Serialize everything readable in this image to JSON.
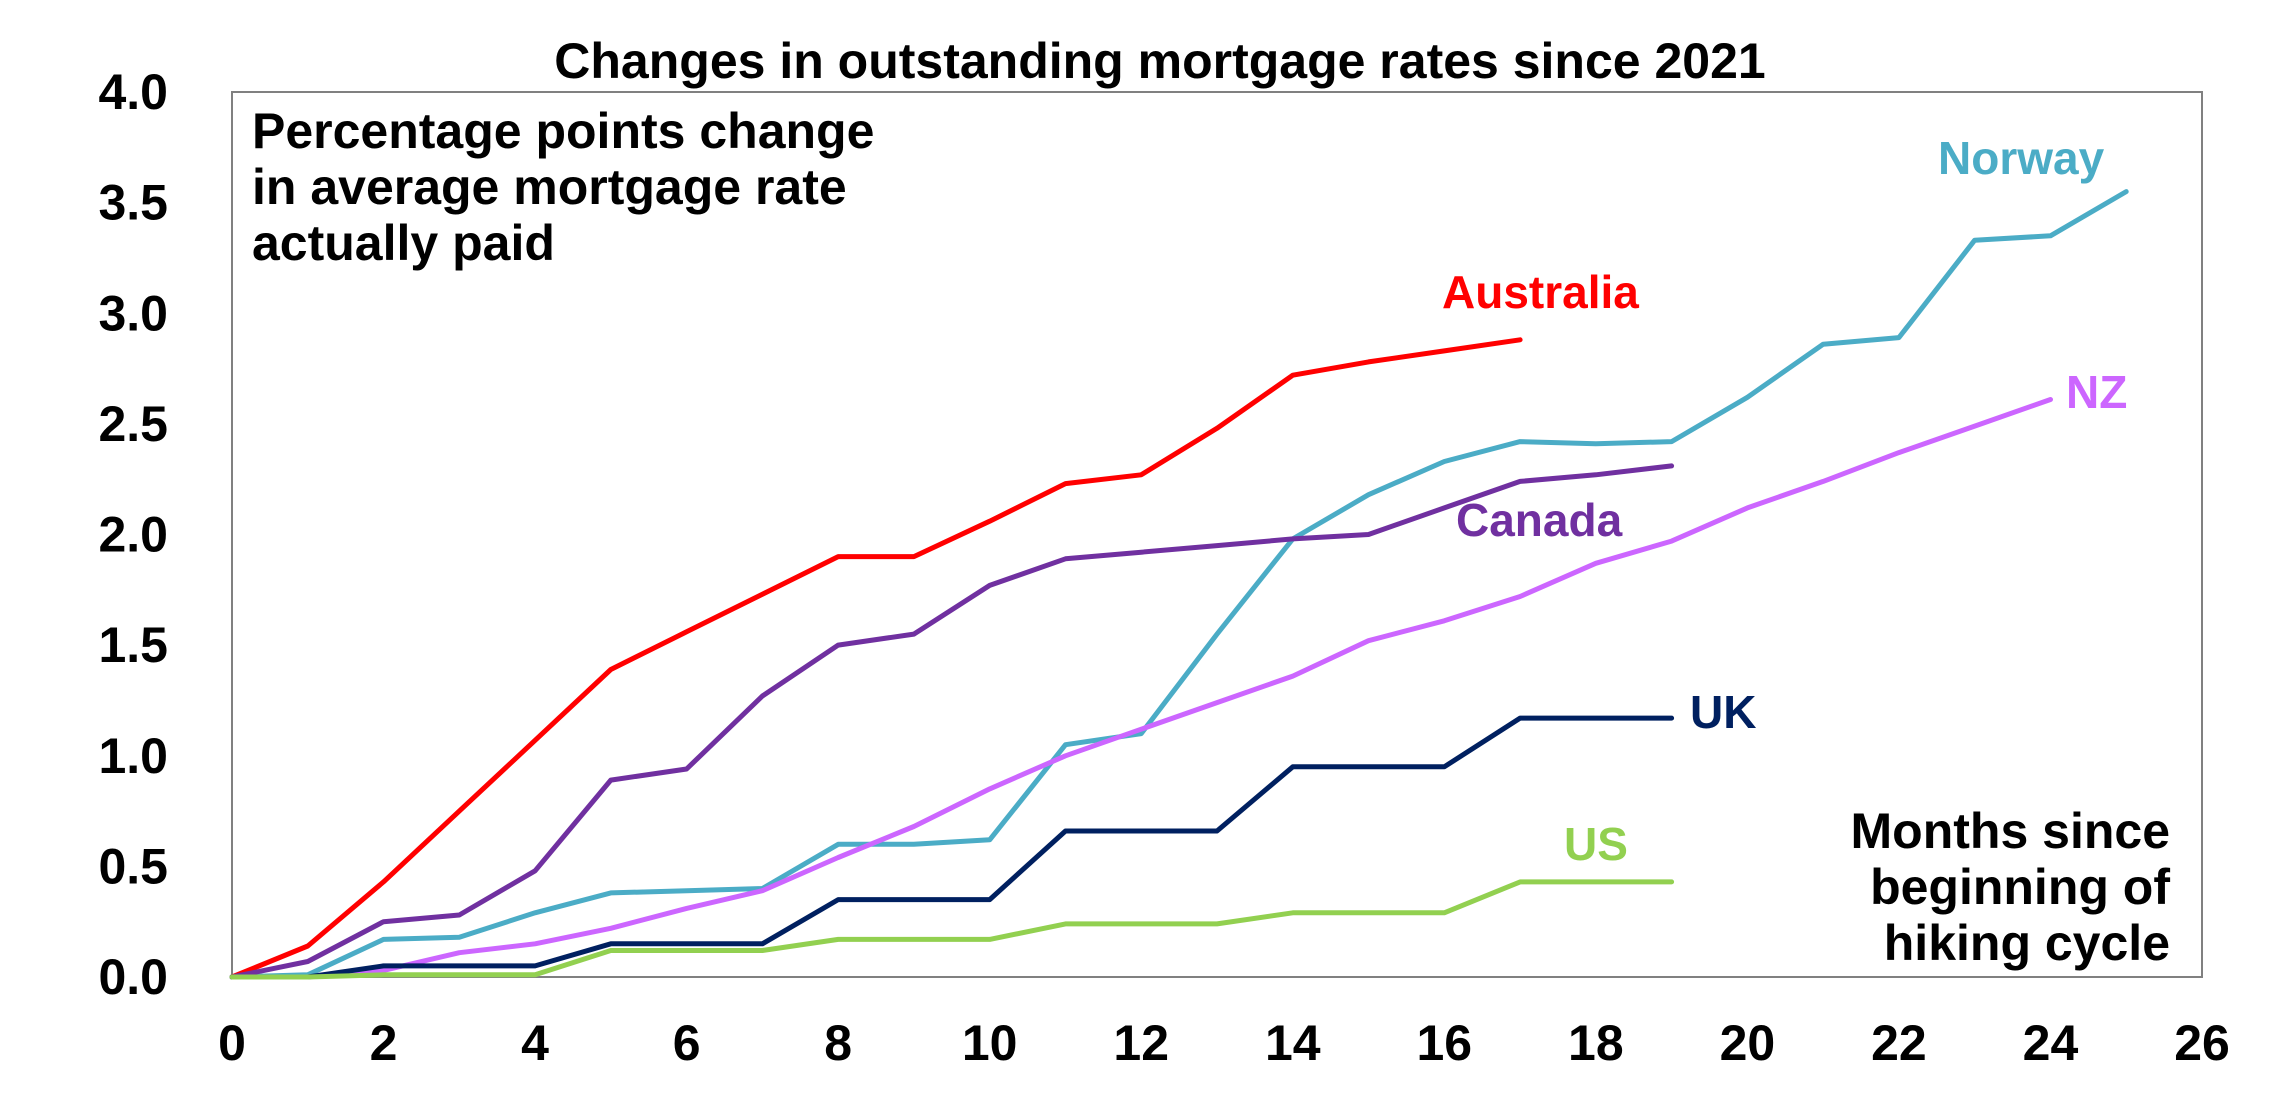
{
  "chart_data": {
    "type": "line",
    "title": "Changes in outstanding mortgage rates since 2021",
    "ylabel_note": [
      "Percentage points change",
      "in average mortgage rate",
      "actually paid"
    ],
    "xlabel_note": [
      "Months since",
      "beginning of",
      "hiking cycle"
    ],
    "xlim": [
      0,
      26
    ],
    "ylim": [
      0,
      4.0
    ],
    "x_ticks": [
      "0",
      "2",
      "4",
      "6",
      "8",
      "10",
      "12",
      "14",
      "16",
      "18",
      "20",
      "22",
      "24",
      "26"
    ],
    "y_ticks": [
      "0.0",
      "0.5",
      "1.0",
      "1.5",
      "2.0",
      "2.5",
      "3.0",
      "3.5",
      "4.0"
    ],
    "grid": false,
    "legend": "inline labels",
    "series": [
      {
        "name": "Australia",
        "color": "#ff0000",
        "x": [
          0,
          1,
          2,
          3,
          4,
          5,
          6,
          7,
          8,
          9,
          10,
          11,
          12,
          13,
          14,
          15,
          16,
          17
        ],
        "values": [
          0.0,
          0.14,
          0.43,
          0.75,
          1.07,
          1.39,
          1.56,
          1.73,
          1.9,
          1.9,
          2.06,
          2.23,
          2.27,
          2.48,
          2.72,
          2.78,
          2.83,
          2.88
        ]
      },
      {
        "name": "Norway",
        "color": "#4bacc6",
        "x": [
          0,
          1,
          2,
          3,
          4,
          5,
          6,
          7,
          8,
          9,
          10,
          11,
          12,
          13,
          14,
          15,
          16,
          17,
          18,
          19,
          20,
          21,
          22,
          23,
          24,
          25
        ],
        "values": [
          0.0,
          0.01,
          0.17,
          0.18,
          0.29,
          0.38,
          0.39,
          0.4,
          0.6,
          0.6,
          0.62,
          1.05,
          1.1,
          1.55,
          1.98,
          2.18,
          2.33,
          2.42,
          2.41,
          2.42,
          2.62,
          2.86,
          2.89,
          3.33,
          3.35,
          3.55
        ]
      },
      {
        "name": "NZ",
        "color": "#cc66ff",
        "x": [
          0,
          1,
          2,
          3,
          4,
          5,
          6,
          7,
          8,
          9,
          10,
          11,
          12,
          13,
          14,
          15,
          16,
          17,
          18,
          19,
          20,
          21,
          22,
          23,
          24
        ],
        "values": [
          0.0,
          0.0,
          0.03,
          0.11,
          0.15,
          0.22,
          0.31,
          0.39,
          0.54,
          0.68,
          0.85,
          1.0,
          1.12,
          1.24,
          1.36,
          1.52,
          1.61,
          1.72,
          1.87,
          1.97,
          2.12,
          2.24,
          2.37,
          2.49,
          2.61
        ]
      },
      {
        "name": "Canada",
        "color": "#7030a0",
        "x": [
          0,
          1,
          2,
          3,
          4,
          5,
          6,
          7,
          8,
          9,
          10,
          11,
          12,
          13,
          14,
          15,
          16,
          17,
          18,
          19
        ],
        "values": [
          0.0,
          0.07,
          0.25,
          0.28,
          0.48,
          0.89,
          0.94,
          1.27,
          1.5,
          1.55,
          1.77,
          1.89,
          1.92,
          1.95,
          1.98,
          2.0,
          2.12,
          2.24,
          2.27,
          2.31
        ]
      },
      {
        "name": "UK",
        "color": "#002060",
        "x": [
          0,
          1,
          2,
          3,
          4,
          5,
          6,
          7,
          8,
          9,
          10,
          11,
          12,
          13,
          14,
          15,
          16,
          17,
          18,
          19
        ],
        "values": [
          0.0,
          0.0,
          0.05,
          0.05,
          0.05,
          0.15,
          0.15,
          0.15,
          0.35,
          0.35,
          0.35,
          0.66,
          0.66,
          0.66,
          0.95,
          0.95,
          0.95,
          1.17,
          1.17,
          1.17
        ]
      },
      {
        "name": "US",
        "color": "#92d050",
        "x": [
          0,
          1,
          2,
          3,
          4,
          5,
          6,
          7,
          8,
          9,
          10,
          11,
          12,
          13,
          14,
          15,
          16,
          17,
          18,
          19
        ],
        "values": [
          0.0,
          0.0,
          0.01,
          0.01,
          0.01,
          0.12,
          0.12,
          0.12,
          0.17,
          0.17,
          0.17,
          0.24,
          0.24,
          0.24,
          0.29,
          0.29,
          0.29,
          0.43,
          0.43,
          0.43
        ]
      }
    ]
  }
}
